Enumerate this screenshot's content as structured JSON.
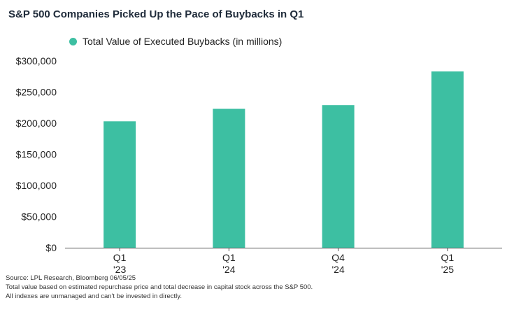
{
  "header": {
    "title": "S&P 500 Companies Picked Up the Pace of Buybacks in Q1"
  },
  "legend": {
    "label": "Total Value of Executed Buybacks (in millions)"
  },
  "colors": {
    "bar": "#3dbfa2",
    "axis": "#555555",
    "title": "#1f2b3a"
  },
  "chart_data": {
    "type": "bar",
    "categories": [
      [
        "Q1",
        "'23"
      ],
      [
        "Q1",
        "'24"
      ],
      [
        "Q4",
        "'24"
      ],
      [
        "Q1",
        "'25"
      ]
    ],
    "series": [
      {
        "name": "Total Value of Executed Buybacks (in millions)",
        "values": [
          203000,
          223000,
          229000,
          283000
        ]
      }
    ],
    "yticks": [
      "$0",
      "$50,000",
      "$100,000",
      "$150,000",
      "$200,000",
      "$250,000",
      "$300,000"
    ],
    "ylim": [
      0,
      300000
    ],
    "grid": false,
    "legend_position": "top-left"
  },
  "footer": {
    "source": "Source: LPL Research, Bloomberg 06/05/25",
    "note1": "Total value based on estimated repurchase price and total decrease in capital stock across the S&P 500.",
    "note2": "All indexes are unmanaged and can't be invested in directly."
  }
}
